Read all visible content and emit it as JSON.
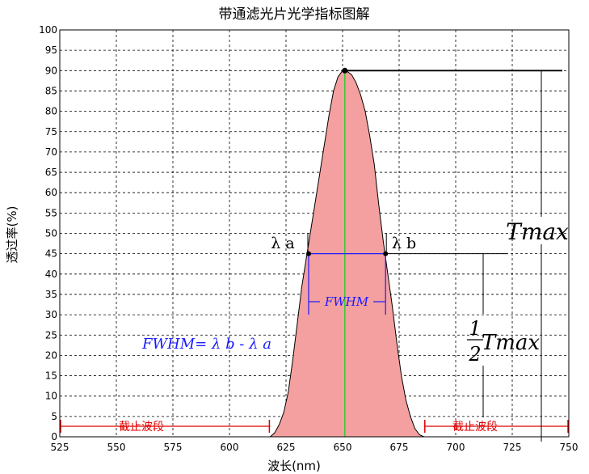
{
  "chart_data": {
    "type": "area",
    "title": "带通滤光片光学指标图解",
    "xlabel": "波长(nm)",
    "ylabel": "透过率(%)",
    "xlim": [
      525,
      750
    ],
    "ylim": [
      0,
      100
    ],
    "xticks": [
      525,
      550,
      575,
      600,
      625,
      650,
      675,
      700,
      725,
      750
    ],
    "yticks": [
      0,
      5,
      10,
      15,
      20,
      25,
      30,
      35,
      40,
      45,
      50,
      55,
      60,
      65,
      70,
      75,
      80,
      85,
      90,
      95,
      100
    ],
    "grid": true,
    "series": [
      {
        "x": [
          618,
          620,
          622,
          624,
          626,
          628,
          630,
          632,
          634,
          636,
          638,
          640,
          642,
          644,
          646,
          648,
          650,
          651,
          652,
          654,
          656,
          658,
          660,
          662,
          664,
          666,
          668,
          670,
          672,
          674,
          676,
          678,
          680,
          682,
          684,
          686
        ],
        "y": [
          0,
          1,
          3,
          6,
          11,
          19,
          28,
          37,
          44,
          51,
          58,
          65,
          72,
          79,
          85,
          88.5,
          90,
          90,
          89.8,
          89,
          87,
          84,
          80,
          74,
          67,
          57,
          48,
          40,
          32,
          23,
          15,
          9,
          5,
          2,
          0.5,
          0
        ],
        "color": "#f4a0a0"
      }
    ],
    "center_wavelength": 651,
    "peak": {
      "x": 651,
      "y": 90
    },
    "half_max_points": [
      {
        "x": 635,
        "y": 45
      },
      {
        "x": 669,
        "y": 45
      }
    ],
    "cutoff_ranges": [
      [
        525,
        618
      ],
      [
        686,
        750
      ]
    ]
  },
  "annotations": {
    "lambda_a": "λ a",
    "lambda_b": "λ b",
    "fwhm": "FWHM",
    "fwhm_formula": "FWHM= λ b - λ a",
    "tmax": "Tmax",
    "half_numerator": "1",
    "half_denominator": "2",
    "half_tmax": "Tmax",
    "cutoff_left": "截止波段",
    "cutoff_right": "截止波段"
  },
  "colors": {
    "fill": "#f4a0a0",
    "center_line": "#33cc33",
    "fwhm": "#1a1aff",
    "cutoff": "#e00000",
    "grid": "#000000"
  }
}
